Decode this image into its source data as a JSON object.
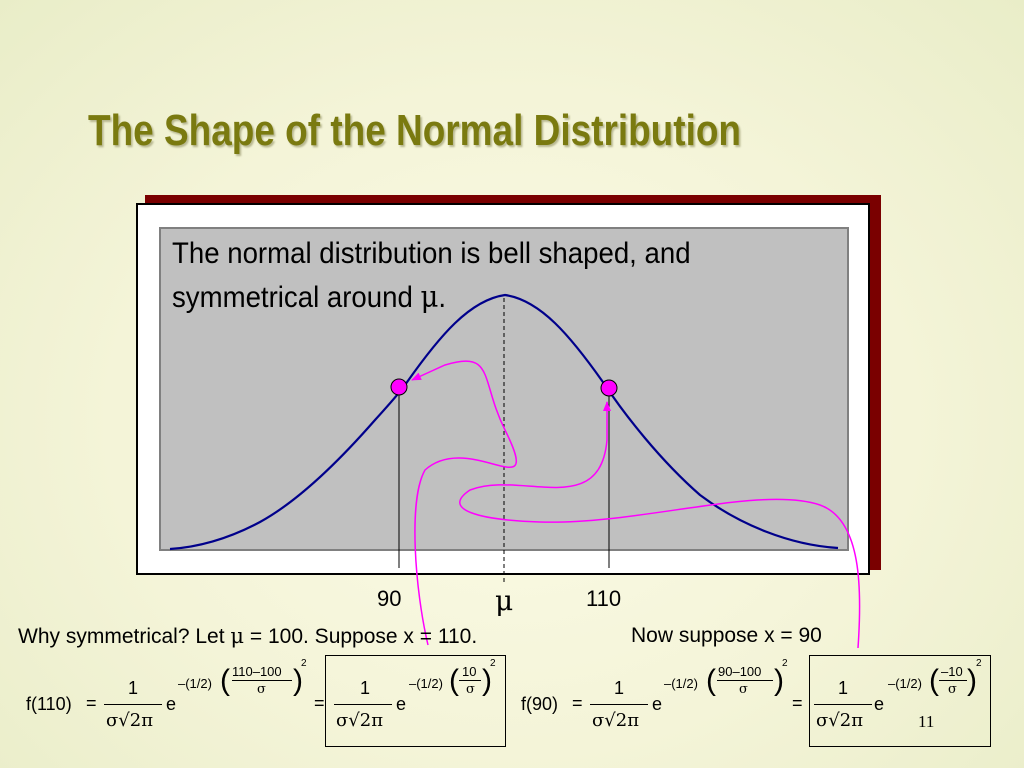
{
  "title": "The Shape of the Normal Distribution",
  "description": {
    "line1": "The normal distribution is bell shaped, and",
    "line2": "symmetrical around ",
    "symbol": "μ",
    "end": "."
  },
  "axis": {
    "left_label": "90",
    "center_label": "μ",
    "right_label": "110"
  },
  "question": {
    "part1": "Why symmetrical?  Let ",
    "mu": "μ",
    "part2": " = 100.  Suppose x = 110.",
    "part3": "Now suppose x = 90"
  },
  "formula110": {
    "lhs": "f(110)",
    "eq": "=",
    "one": "1",
    "denom": "σ√2π",
    "e": "e",
    "exp_factor": "–(1/2)",
    "exp_num": "110–100",
    "exp_den": "σ",
    "power": "2",
    "eq2": "=",
    "box_one": "1",
    "box_denom": "σ√2π",
    "box_e": "e",
    "box_exp_factor": "–(1/2)",
    "box_exp_num": "10",
    "box_exp_den": "σ",
    "box_power": "2"
  },
  "formula90": {
    "lhs": "f(90)",
    "eq": "=",
    "one": "1",
    "denom": "σ√2π",
    "e": "e",
    "exp_factor": "–(1/2)",
    "exp_num": "90–100",
    "exp_den": "σ",
    "power": "2",
    "eq2": "=",
    "box_one": "1",
    "box_denom": "σ√2π",
    "box_e": "e",
    "box_exp_factor": "–(1/2)",
    "box_exp_num": "–10",
    "box_exp_den": "σ",
    "box_power": "2"
  },
  "page_number": "11",
  "colors": {
    "title": "#7a7a10",
    "curve": "#00008b",
    "marker": "#ff00ff",
    "arrow": "#ff00ff",
    "shadow": "#7a0000",
    "plot_bg": "#c0c0c0"
  }
}
